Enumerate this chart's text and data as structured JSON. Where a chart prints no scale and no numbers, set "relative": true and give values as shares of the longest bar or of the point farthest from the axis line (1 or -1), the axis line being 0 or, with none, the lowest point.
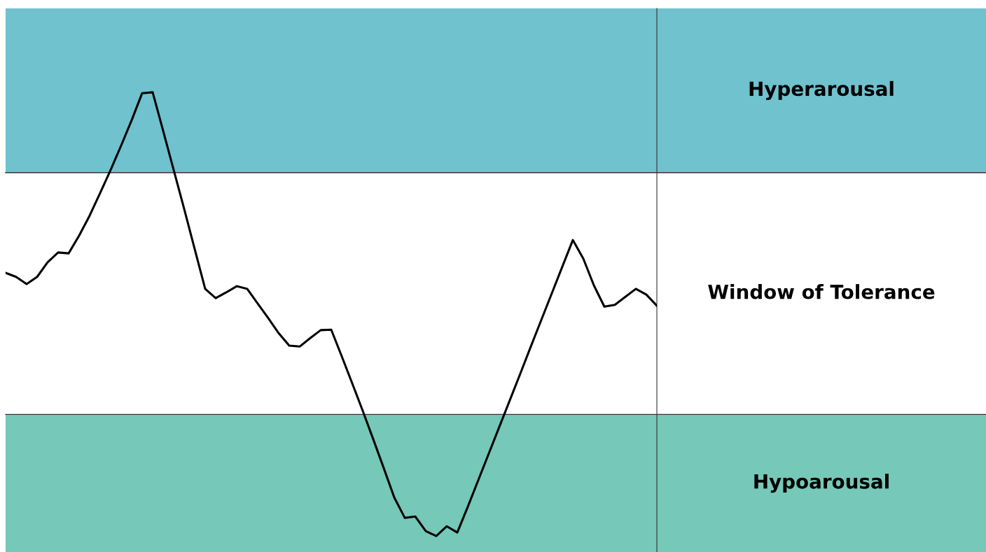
{
  "chart_data": {
    "type": "line",
    "relative": true,
    "marker": "none",
    "line_style": "solid",
    "categories": [
      null,
      null,
      null,
      null,
      null,
      null,
      null,
      null,
      null,
      null,
      null,
      null,
      null,
      null,
      null,
      null,
      null,
      null,
      null,
      null,
      null,
      null,
      null,
      null,
      null,
      null,
      null,
      null,
      null,
      null,
      null,
      null,
      null,
      null,
      null,
      null,
      null,
      null,
      null,
      null,
      null,
      null,
      null,
      null,
      null,
      null,
      null,
      null,
      null,
      null,
      null,
      null,
      null,
      null,
      null,
      null,
      null,
      null,
      null,
      null,
      null,
      null,
      null
    ],
    "series": [
      {
        "color": "#000000",
        "values": [
          0.593,
          0.584,
          0.568,
          0.584,
          0.617,
          0.639,
          0.637,
          0.677,
          0.722,
          0.773,
          0.825,
          0.88,
          0.937,
          0.998,
          1,
          0.913,
          0.825,
          0.737,
          0.647,
          0.557,
          0.536,
          0.549,
          0.563,
          0.557,
          0.524,
          0.491,
          0.457,
          0.429,
          0.427,
          0.446,
          0.464,
          0.465,
          0.405,
          0.344,
          0.282,
          0.218,
          0.153,
          0.087,
          0.041,
          0.044,
          0.011,
          0,
          0.022,
          0.008,
          0.066,
          0.126,
          0.186,
          0.246,
          0.306,
          0.366,
          0.427,
          0.487,
          0.547,
          0.607,
          0.667,
          0.625,
          0.565,
          0.517,
          0.521,
          0.539,
          0.557,
          0.544,
          0.519
        ]
      }
    ],
    "bands": [
      {
        "axis": "y",
        "from": 0.819,
        "to": 1.189,
        "label": "Hyperarousal",
        "color": "#6fc2ce"
      },
      {
        "axis": "y",
        "from": -0.036,
        "to": 0.274,
        "label": "Hypoarousal",
        "color": "#76c8b8"
      }
    ],
    "ref_lines": [
      {
        "axis": "y",
        "value": 0.819,
        "color": "#333333",
        "line_style": "solid"
      },
      {
        "axis": "y",
        "value": 0.274,
        "color": "#333333",
        "line_style": "solid"
      }
    ],
    "annotations": [
      "Window of Tolerance"
    ]
  }
}
